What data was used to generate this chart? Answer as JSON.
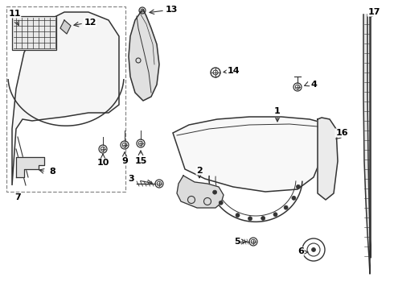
{
  "bg_color": "#ffffff",
  "line_color": "#333333",
  "label_color": "#000000",
  "fig_w": 4.9,
  "fig_h": 3.6,
  "dpi": 100
}
